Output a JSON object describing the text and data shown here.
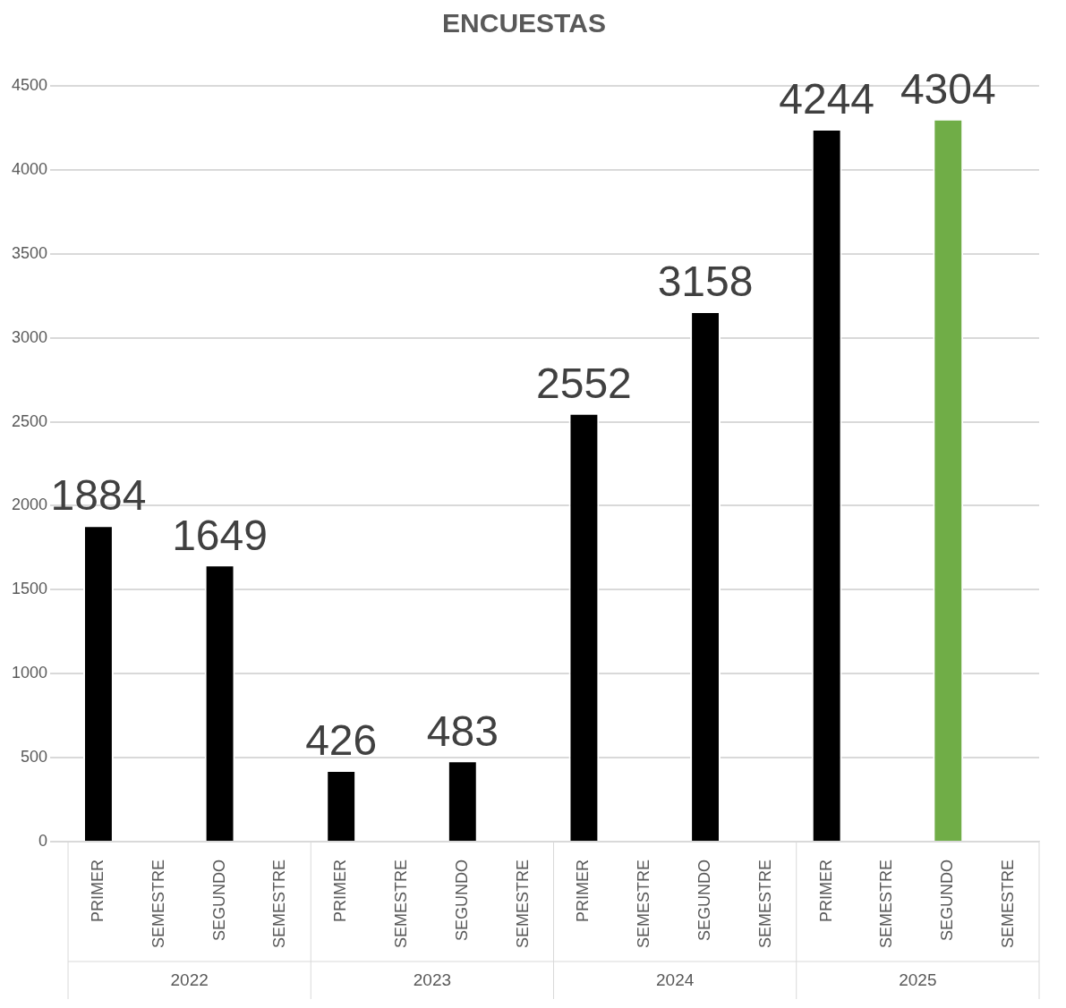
{
  "chart_data": {
    "type": "bar",
    "title": "ENCUESTAS",
    "categories": [
      "PRIMER",
      "SEMESTRE",
      "SEGUNDO",
      "SEMESTRE",
      "PRIMER",
      "SEMESTRE",
      "SEGUNDO",
      "SEMESTRE",
      "PRIMER",
      "SEMESTRE",
      "SEGUNDO",
      "SEMESTRE",
      "PRIMER",
      "SEMESTRE",
      "SEGUNDO",
      "SEMESTRE"
    ],
    "values": [
      1884,
      null,
      1649,
      null,
      426,
      null,
      483,
      null,
      2552,
      null,
      3158,
      null,
      4244,
      null,
      4304,
      null
    ],
    "colors": [
      "#000000",
      "#000000",
      "#000000",
      "#000000",
      "#000000",
      "#000000",
      "#000000",
      "#000000",
      "#000000",
      "#000000",
      "#000000",
      "#000000",
      "#000000",
      "#000000",
      "#70ad47",
      "#000000"
    ],
    "annotations": [
      "2022",
      "2023",
      "2024",
      "2025"
    ],
    "ylim": [
      0,
      4500
    ],
    "yticks": [
      0,
      500,
      1000,
      1500,
      2000,
      2500,
      3000,
      3500,
      4000,
      4500
    ],
    "grid": "y",
    "data_labels": true,
    "legend": false
  }
}
